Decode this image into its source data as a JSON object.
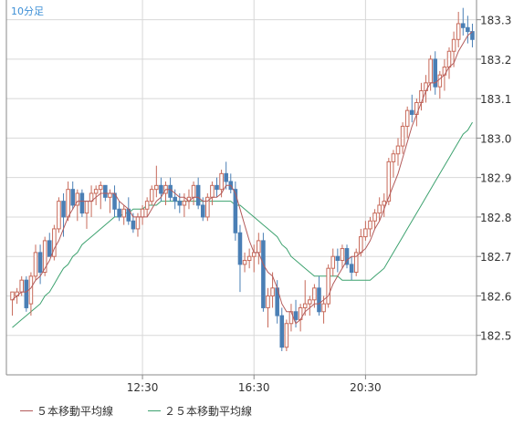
{
  "chart_title": "10分足",
  "colors": {
    "up_candle": "#c76a5a",
    "down_candle": "#4a7fb5",
    "ma5": "#b35b5b",
    "ma25": "#3da26f",
    "grid": "#d8d8d8",
    "axis": "#888888"
  },
  "legend": [
    {
      "label": "５本移動平均線",
      "color": "#b35b5b"
    },
    {
      "label": "２５本移動平均線",
      "color": "#3da26f"
    }
  ],
  "chart_data": {
    "type": "candlestick",
    "ylim": [
      182.4,
      183.35
    ],
    "y_ticks": [
      "182.5",
      "182.6",
      "182.7",
      "182.8",
      "182.9",
      "183.0",
      "183.1",
      "183.2",
      "183.3"
    ],
    "x_ticks": [
      "12:30",
      "16:30",
      "20:30"
    ],
    "x_tick_index": [
      28,
      52,
      76
    ],
    "candles": [
      [
        182.59,
        182.61,
        182.55,
        182.61
      ],
      [
        182.6,
        182.62,
        182.58,
        182.61
      ],
      [
        182.61,
        182.65,
        182.6,
        182.64
      ],
      [
        182.64,
        182.65,
        182.56,
        182.57
      ],
      [
        182.58,
        182.66,
        182.55,
        182.65
      ],
      [
        182.65,
        182.73,
        182.64,
        182.71
      ],
      [
        182.71,
        182.73,
        182.63,
        182.66
      ],
      [
        182.66,
        182.75,
        182.65,
        182.74
      ],
      [
        182.74,
        182.76,
        182.7,
        182.7
      ],
      [
        182.7,
        182.78,
        182.69,
        182.77
      ],
      [
        182.77,
        182.85,
        182.76,
        182.84
      ],
      [
        182.84,
        182.86,
        182.75,
        182.8
      ],
      [
        182.8,
        182.89,
        182.79,
        182.87
      ],
      [
        182.87,
        182.89,
        182.82,
        182.83
      ],
      [
        182.83,
        182.87,
        182.79,
        182.86
      ],
      [
        182.86,
        182.87,
        182.8,
        182.81
      ],
      [
        182.81,
        182.84,
        182.77,
        182.84
      ],
      [
        182.84,
        182.88,
        182.8,
        182.86
      ],
      [
        182.86,
        182.88,
        182.83,
        182.87
      ],
      [
        182.87,
        182.89,
        182.82,
        182.88
      ],
      [
        182.88,
        182.88,
        182.84,
        182.85
      ],
      [
        182.85,
        182.87,
        182.81,
        182.86
      ],
      [
        182.86,
        182.88,
        182.8,
        182.82
      ],
      [
        182.82,
        182.84,
        182.79,
        182.8
      ],
      [
        182.8,
        182.83,
        182.78,
        182.82
      ],
      [
        182.82,
        182.85,
        182.78,
        182.79
      ],
      [
        182.79,
        182.81,
        182.76,
        182.77
      ],
      [
        182.77,
        182.81,
        182.75,
        182.8
      ],
      [
        182.8,
        182.83,
        182.78,
        182.82
      ],
      [
        182.82,
        182.85,
        182.8,
        182.84
      ],
      [
        182.84,
        182.88,
        182.83,
        182.87
      ],
      [
        182.87,
        182.93,
        182.85,
        182.88
      ],
      [
        182.88,
        182.9,
        182.84,
        182.86
      ],
      [
        182.86,
        182.89,
        182.83,
        182.88
      ],
      [
        182.88,
        182.9,
        182.84,
        182.85
      ],
      [
        182.85,
        182.87,
        182.82,
        182.84
      ],
      [
        182.84,
        182.86,
        182.81,
        182.83
      ],
      [
        182.83,
        182.86,
        182.8,
        182.84
      ],
      [
        182.84,
        182.87,
        182.82,
        182.85
      ],
      [
        182.85,
        182.89,
        182.83,
        182.88
      ],
      [
        182.88,
        182.9,
        182.82,
        182.83
      ],
      [
        182.83,
        182.85,
        182.79,
        182.8
      ],
      [
        182.8,
        182.86,
        182.79,
        182.85
      ],
      [
        182.85,
        182.89,
        182.83,
        182.88
      ],
      [
        182.88,
        182.9,
        182.85,
        182.87
      ],
      [
        182.87,
        182.92,
        182.85,
        182.91
      ],
      [
        182.91,
        182.94,
        182.87,
        182.89
      ],
      [
        182.89,
        182.91,
        182.86,
        182.87
      ],
      [
        182.87,
        182.89,
        182.74,
        182.76
      ],
      [
        182.76,
        182.78,
        182.61,
        182.68
      ],
      [
        182.68,
        182.71,
        182.66,
        182.69
      ],
      [
        182.69,
        182.72,
        182.67,
        182.7
      ],
      [
        182.7,
        182.73,
        182.66,
        182.71
      ],
      [
        182.71,
        182.76,
        182.68,
        182.74
      ],
      [
        182.74,
        182.76,
        182.56,
        182.57
      ],
      [
        182.57,
        182.62,
        182.52,
        182.6
      ],
      [
        182.6,
        182.66,
        182.57,
        182.62
      ],
      [
        182.62,
        182.64,
        182.53,
        182.55
      ],
      [
        182.55,
        182.57,
        182.46,
        182.47
      ],
      [
        182.47,
        182.54,
        182.46,
        182.53
      ],
      [
        182.53,
        182.58,
        182.51,
        182.56
      ],
      [
        182.56,
        182.59,
        182.52,
        182.54
      ],
      [
        182.54,
        182.58,
        182.51,
        182.57
      ],
      [
        182.57,
        182.64,
        182.55,
        182.58
      ],
      [
        182.58,
        182.6,
        182.55,
        182.59
      ],
      [
        182.59,
        182.63,
        182.57,
        182.62
      ],
      [
        182.62,
        182.65,
        182.55,
        182.56
      ],
      [
        182.56,
        182.6,
        182.53,
        182.58
      ],
      [
        182.58,
        182.68,
        182.57,
        182.67
      ],
      [
        182.67,
        182.72,
        182.65,
        182.7
      ],
      [
        182.7,
        182.72,
        182.66,
        182.69
      ],
      [
        182.69,
        182.73,
        182.67,
        182.72
      ],
      [
        182.72,
        182.73,
        182.67,
        182.68
      ],
      [
        182.68,
        182.7,
        182.64,
        182.66
      ],
      [
        182.66,
        182.72,
        182.65,
        182.71
      ],
      [
        182.71,
        182.77,
        182.7,
        182.75
      ],
      [
        182.75,
        182.79,
        182.74,
        182.77
      ],
      [
        182.77,
        182.8,
        182.75,
        182.79
      ],
      [
        182.79,
        182.82,
        182.77,
        182.81
      ],
      [
        182.81,
        182.85,
        182.79,
        182.83
      ],
      [
        182.83,
        182.86,
        182.8,
        182.84
      ],
      [
        182.84,
        182.95,
        182.83,
        182.94
      ],
      [
        182.94,
        182.97,
        182.9,
        182.96
      ],
      [
        182.96,
        183.0,
        182.93,
        182.98
      ],
      [
        182.98,
        183.04,
        182.96,
        183.03
      ],
      [
        183.03,
        183.08,
        183.0,
        183.07
      ],
      [
        183.07,
        183.11,
        183.04,
        183.06
      ],
      [
        183.06,
        183.1,
        183.03,
        183.09
      ],
      [
        183.09,
        183.14,
        183.07,
        183.12
      ],
      [
        183.12,
        183.16,
        183.09,
        183.14
      ],
      [
        183.14,
        183.21,
        183.12,
        183.2
      ],
      [
        183.2,
        183.22,
        183.11,
        183.13
      ],
      [
        183.13,
        183.17,
        183.1,
        183.16
      ],
      [
        183.16,
        183.2,
        183.12,
        183.18
      ],
      [
        183.18,
        183.23,
        183.15,
        183.22
      ],
      [
        183.22,
        183.27,
        183.18,
        183.25
      ],
      [
        183.25,
        183.32,
        183.23,
        183.29
      ],
      [
        183.29,
        183.33,
        183.26,
        183.28
      ],
      [
        183.28,
        183.31,
        183.24,
        183.27
      ],
      [
        183.27,
        183.29,
        183.23,
        183.25
      ]
    ],
    "ma5": [
      182.59,
      182.6,
      182.61,
      182.61,
      182.62,
      182.64,
      182.65,
      182.67,
      182.69,
      182.72,
      182.74,
      182.77,
      182.8,
      182.82,
      182.84,
      182.84,
      182.84,
      182.84,
      182.85,
      182.86,
      182.86,
      182.86,
      182.86,
      182.84,
      182.83,
      182.82,
      182.8,
      182.8,
      182.8,
      182.8,
      182.82,
      182.84,
      182.85,
      182.87,
      182.87,
      182.86,
      182.85,
      182.85,
      182.84,
      182.85,
      182.85,
      182.84,
      182.84,
      182.85,
      182.85,
      182.86,
      182.88,
      182.88,
      182.86,
      182.82,
      182.78,
      182.74,
      182.71,
      182.71,
      182.68,
      182.66,
      182.65,
      182.62,
      182.58,
      182.56,
      182.56,
      182.53,
      182.54,
      182.56,
      182.57,
      182.58,
      182.58,
      182.59,
      182.6,
      182.63,
      182.65,
      182.67,
      182.69,
      182.7,
      182.7,
      182.71,
      182.72,
      182.74,
      182.77,
      182.79,
      182.82,
      182.85,
      182.88,
      182.91,
      182.95,
      182.99,
      183.03,
      183.06,
      183.09,
      183.12,
      183.14,
      183.14,
      183.15,
      183.16,
      183.18,
      183.19,
      183.22,
      183.24,
      183.26,
      183.27
    ],
    "ma25": [
      182.52,
      182.53,
      182.54,
      182.55,
      182.56,
      182.57,
      182.58,
      182.6,
      182.61,
      182.63,
      182.65,
      182.67,
      182.68,
      182.7,
      182.71,
      182.73,
      182.74,
      182.75,
      182.76,
      182.77,
      182.78,
      182.79,
      182.8,
      182.8,
      182.81,
      182.81,
      182.82,
      182.82,
      182.82,
      182.83,
      182.83,
      182.83,
      182.84,
      182.84,
      182.84,
      182.84,
      182.84,
      182.84,
      182.84,
      182.84,
      182.84,
      182.84,
      182.84,
      182.84,
      182.84,
      182.84,
      182.84,
      182.84,
      182.83,
      182.83,
      182.82,
      182.81,
      182.8,
      182.79,
      182.78,
      182.77,
      182.76,
      182.75,
      182.73,
      182.72,
      182.7,
      182.69,
      182.68,
      182.67,
      182.66,
      182.65,
      182.65,
      182.65,
      182.65,
      182.65,
      182.65,
      182.64,
      182.64,
      182.64,
      182.64,
      182.64,
      182.64,
      182.64,
      182.65,
      182.66,
      182.67,
      182.69,
      182.71,
      182.73,
      182.75,
      182.77,
      182.79,
      182.81,
      182.83,
      182.85,
      182.87,
      182.89,
      182.91,
      182.93,
      182.95,
      182.97,
      182.99,
      183.01,
      183.02,
      183.04
    ]
  }
}
